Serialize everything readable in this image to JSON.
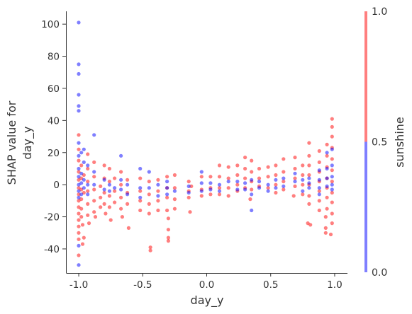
{
  "chart_data": {
    "type": "scatter",
    "title": "",
    "xlabel": "day_y",
    "ylabel_lines": [
      "SHAP value for",
      "day_y"
    ],
    "xlim": [
      -1.1,
      1.1
    ],
    "ylim": [
      -55,
      108
    ],
    "x_ticks": [
      -1.0,
      -0.5,
      0.0,
      0.5,
      1.0
    ],
    "x_tick_labels": [
      "-1.0",
      "-0.5",
      "0.0",
      "0.5",
      "1.0"
    ],
    "y_ticks": [
      -40,
      -20,
      0,
      20,
      40,
      60,
      80,
      100
    ],
    "y_tick_labels": [
      "-40",
      "-20",
      "0",
      "20",
      "40",
      "60",
      "80",
      "100"
    ],
    "grid": false,
    "colorbar": {
      "label": "sunshine",
      "range": [
        0.0,
        1.0
      ],
      "ticks": [
        0.0,
        0.5,
        1.0
      ],
      "tick_labels": [
        "0.0",
        "0.5",
        "1.0"
      ],
      "low_color": "#0000ff",
      "high_color": "#ff0000"
    },
    "series": [
      {
        "color": "#ff0000",
        "value": 1,
        "points": [
          [
            -1.0,
            31
          ],
          [
            -1.0,
            22
          ],
          [
            -1.0,
            15
          ],
          [
            -1.0,
            8
          ],
          [
            -1.0,
            3
          ],
          [
            -1.0,
            -2
          ],
          [
            -1.0,
            -6
          ],
          [
            -1.0,
            -10
          ],
          [
            -1.0,
            -14
          ],
          [
            -1.0,
            -18
          ],
          [
            -1.0,
            -22
          ],
          [
            -1.0,
            -26
          ],
          [
            -1.0,
            -30
          ],
          [
            -1.0,
            -34
          ],
          [
            -1.0,
            -44
          ],
          [
            -0.98,
            12
          ],
          [
            -0.98,
            4
          ],
          [
            -0.98,
            -3
          ],
          [
            -0.98,
            -9
          ],
          [
            -0.98,
            -15
          ],
          [
            -0.98,
            -20
          ],
          [
            -0.97,
            -25
          ],
          [
            -0.97,
            -37
          ],
          [
            -0.96,
            -33
          ],
          [
            -0.96,
            -5
          ],
          [
            -0.96,
            6
          ],
          [
            -0.93,
            19
          ],
          [
            -0.93,
            10
          ],
          [
            -0.93,
            2
          ],
          [
            -0.93,
            -4
          ],
          [
            -0.93,
            -12
          ],
          [
            -0.93,
            -19
          ],
          [
            -0.92,
            -24
          ],
          [
            -0.88,
            14
          ],
          [
            -0.88,
            5
          ],
          [
            -0.88,
            -3
          ],
          [
            -0.88,
            -10
          ],
          [
            -0.88,
            -17
          ],
          [
            -0.87,
            -20
          ],
          [
            -0.83,
            -1
          ],
          [
            -0.83,
            -8
          ],
          [
            -0.83,
            -14
          ],
          [
            -0.8,
            12
          ],
          [
            -0.8,
            4
          ],
          [
            -0.8,
            -5
          ],
          [
            -0.8,
            -12
          ],
          [
            -0.79,
            -18
          ],
          [
            -0.76,
            10
          ],
          [
            -0.76,
            2
          ],
          [
            -0.76,
            -7
          ],
          [
            -0.76,
            -14
          ],
          [
            -0.75,
            -22
          ],
          [
            -0.72,
            4
          ],
          [
            -0.72,
            -4
          ],
          [
            -0.72,
            -11
          ],
          [
            -0.67,
            8
          ],
          [
            -0.67,
            0
          ],
          [
            -0.67,
            -8
          ],
          [
            -0.67,
            -15
          ],
          [
            -0.66,
            -20
          ],
          [
            -0.62,
            3
          ],
          [
            -0.62,
            -5
          ],
          [
            -0.62,
            -12
          ],
          [
            -0.61,
            -27
          ],
          [
            -0.52,
            4
          ],
          [
            -0.52,
            -4
          ],
          [
            -0.52,
            -10
          ],
          [
            -0.52,
            -16
          ],
          [
            -0.45,
            2
          ],
          [
            -0.45,
            -6
          ],
          [
            -0.45,
            -12
          ],
          [
            -0.45,
            -18
          ],
          [
            -0.44,
            -39
          ],
          [
            -0.44,
            -41
          ],
          [
            -0.38,
            3
          ],
          [
            -0.38,
            -4
          ],
          [
            -0.38,
            -10
          ],
          [
            -0.38,
            -16
          ],
          [
            -0.31,
            5
          ],
          [
            -0.31,
            -2
          ],
          [
            -0.31,
            -8
          ],
          [
            -0.31,
            -16
          ],
          [
            -0.3,
            -21
          ],
          [
            -0.3,
            -28
          ],
          [
            -0.3,
            -33
          ],
          [
            -0.3,
            -35
          ],
          [
            -0.25,
            6
          ],
          [
            -0.25,
            -2
          ],
          [
            -0.25,
            -9
          ],
          [
            -0.25,
            -15
          ],
          [
            -0.14,
            2
          ],
          [
            -0.14,
            -4
          ],
          [
            -0.14,
            -8
          ],
          [
            -0.13,
            -17
          ],
          [
            -0.12,
            -1
          ],
          [
            -0.04,
            5
          ],
          [
            -0.04,
            -3
          ],
          [
            -0.04,
            -7
          ],
          [
            0.03,
            5
          ],
          [
            0.03,
            -2
          ],
          [
            0.03,
            -6
          ],
          [
            0.1,
            12
          ],
          [
            0.1,
            5
          ],
          [
            0.1,
            -2
          ],
          [
            0.1,
            -6
          ],
          [
            0.17,
            11
          ],
          [
            0.17,
            4
          ],
          [
            0.17,
            -2
          ],
          [
            0.17,
            -7
          ],
          [
            0.24,
            12
          ],
          [
            0.24,
            6
          ],
          [
            0.24,
            0
          ],
          [
            0.24,
            -4
          ],
          [
            0.3,
            17
          ],
          [
            0.3,
            10
          ],
          [
            0.3,
            4
          ],
          [
            0.3,
            -2
          ],
          [
            0.35,
            15
          ],
          [
            0.35,
            8
          ],
          [
            0.35,
            2
          ],
          [
            0.35,
            -3
          ],
          [
            0.34,
            -9
          ],
          [
            0.41,
            10
          ],
          [
            0.41,
            4
          ],
          [
            0.41,
            -1
          ],
          [
            0.48,
            11
          ],
          [
            0.48,
            5
          ],
          [
            0.48,
            -2
          ],
          [
            0.54,
            12
          ],
          [
            0.54,
            6
          ],
          [
            0.54,
            0
          ],
          [
            0.54,
            -5
          ],
          [
            0.6,
            16
          ],
          [
            0.6,
            8
          ],
          [
            0.6,
            2
          ],
          [
            0.6,
            -3
          ],
          [
            0.69,
            17
          ],
          [
            0.69,
            10
          ],
          [
            0.69,
            4
          ],
          [
            0.69,
            -1
          ],
          [
            0.68,
            -7
          ],
          [
            0.75,
            12
          ],
          [
            0.75,
            6
          ],
          [
            0.75,
            0
          ],
          [
            0.75,
            -6
          ],
          [
            0.8,
            26
          ],
          [
            0.8,
            18
          ],
          [
            0.8,
            12
          ],
          [
            0.8,
            6
          ],
          [
            0.8,
            0
          ],
          [
            0.8,
            -7
          ],
          [
            0.8,
            -12
          ],
          [
            0.79,
            -24
          ],
          [
            0.81,
            -25
          ],
          [
            0.88,
            21
          ],
          [
            0.88,
            14
          ],
          [
            0.88,
            8
          ],
          [
            0.88,
            2
          ],
          [
            0.88,
            -4
          ],
          [
            0.88,
            -10
          ],
          [
            0.88,
            -16
          ],
          [
            0.94,
            25
          ],
          [
            0.94,
            18
          ],
          [
            0.94,
            11
          ],
          [
            0.94,
            4
          ],
          [
            0.94,
            -2
          ],
          [
            0.94,
            -8
          ],
          [
            0.94,
            -15
          ],
          [
            0.93,
            -20
          ],
          [
            0.93,
            -27
          ],
          [
            0.93,
            -30
          ],
          [
            0.98,
            41
          ],
          [
            0.98,
            36
          ],
          [
            0.98,
            30
          ],
          [
            0.98,
            23
          ],
          [
            0.98,
            16
          ],
          [
            0.98,
            9
          ],
          [
            0.98,
            2
          ],
          [
            0.98,
            -5
          ],
          [
            0.98,
            -11
          ],
          [
            0.98,
            -18
          ],
          [
            0.98,
            -24
          ],
          [
            0.97,
            -31
          ]
        ]
      },
      {
        "color": "#0000ff",
        "value": 0,
        "points": [
          [
            -1.0,
            101
          ],
          [
            -1.0,
            75
          ],
          [
            -1.0,
            69
          ],
          [
            -1.0,
            56
          ],
          [
            -1.0,
            49
          ],
          [
            -1.0,
            46
          ],
          [
            -1.0,
            26
          ],
          [
            -1.0,
            18
          ],
          [
            -1.0,
            10
          ],
          [
            -1.0,
            5
          ],
          [
            -1.0,
            0
          ],
          [
            -1.0,
            -4
          ],
          [
            -1.0,
            -8
          ],
          [
            -1.0,
            -38
          ],
          [
            -1.0,
            -50
          ],
          [
            -0.98,
            20
          ],
          [
            -0.98,
            7
          ],
          [
            -0.98,
            1
          ],
          [
            -0.98,
            -6
          ],
          [
            -0.96,
            22
          ],
          [
            -0.96,
            14
          ],
          [
            -0.96,
            3
          ],
          [
            -0.96,
            -2
          ],
          [
            -0.93,
            12
          ],
          [
            -0.93,
            0
          ],
          [
            -0.93,
            -6
          ],
          [
            -0.88,
            31
          ],
          [
            -0.88,
            8
          ],
          [
            -0.88,
            0
          ],
          [
            -0.8,
            3
          ],
          [
            -0.8,
            -3
          ],
          [
            -0.76,
            -4
          ],
          [
            -0.76,
            0
          ],
          [
            -0.72,
            -2
          ],
          [
            -0.67,
            18
          ],
          [
            -0.67,
            3
          ],
          [
            -0.67,
            -3
          ],
          [
            -0.62,
            -6
          ],
          [
            -0.62,
            0
          ],
          [
            -0.52,
            10
          ],
          [
            -0.52,
            -2
          ],
          [
            -0.52,
            -8
          ],
          [
            -0.45,
            8
          ],
          [
            -0.45,
            -2
          ],
          [
            -0.38,
            -7
          ],
          [
            -0.38,
            0
          ],
          [
            -0.31,
            -2
          ],
          [
            -0.31,
            -6
          ],
          [
            -0.31,
            2
          ],
          [
            -0.25,
            -4
          ],
          [
            -0.14,
            -1
          ],
          [
            -0.14,
            -5
          ],
          [
            -0.04,
            -4
          ],
          [
            -0.04,
            1
          ],
          [
            -0.04,
            8
          ],
          [
            0.03,
            1
          ],
          [
            0.03,
            -3
          ],
          [
            0.1,
            0
          ],
          [
            0.1,
            -4
          ],
          [
            0.17,
            2
          ],
          [
            0.24,
            2
          ],
          [
            0.24,
            -3
          ],
          [
            0.3,
            -3
          ],
          [
            0.3,
            1
          ],
          [
            0.35,
            3
          ],
          [
            0.35,
            -6
          ],
          [
            0.35,
            -16
          ],
          [
            0.41,
            2
          ],
          [
            0.41,
            -2
          ],
          [
            0.48,
            0
          ],
          [
            0.48,
            -4
          ],
          [
            0.54,
            3
          ],
          [
            0.54,
            -2
          ],
          [
            0.6,
            4
          ],
          [
            0.6,
            -1
          ],
          [
            0.69,
            7
          ],
          [
            0.69,
            2
          ],
          [
            0.75,
            3
          ],
          [
            0.75,
            -4
          ],
          [
            0.8,
            4
          ],
          [
            0.8,
            1
          ],
          [
            0.8,
            -2
          ],
          [
            0.88,
            9
          ],
          [
            0.88,
            3
          ],
          [
            0.88,
            -2
          ],
          [
            0.88,
            -6
          ],
          [
            0.94,
            20
          ],
          [
            0.94,
            10
          ],
          [
            0.94,
            4
          ],
          [
            0.94,
            -1
          ],
          [
            0.98,
            22
          ],
          [
            0.98,
            12
          ],
          [
            0.98,
            5
          ],
          [
            0.98,
            0
          ],
          [
            0.98,
            -3
          ]
        ]
      }
    ]
  }
}
